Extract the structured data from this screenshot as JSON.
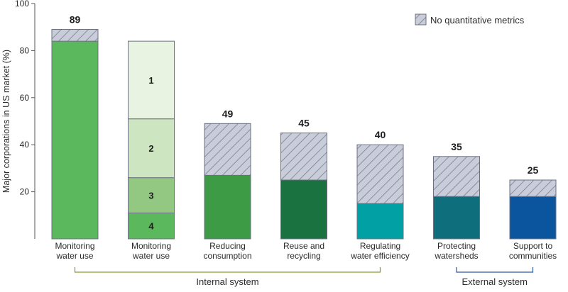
{
  "chart_data": {
    "type": "bar",
    "ylabel": "Major corporations in US market (%)",
    "ylim": [
      0,
      100
    ],
    "yticks": [
      20,
      40,
      60,
      80,
      100
    ],
    "legend": {
      "label": "No quantitative metrics",
      "placement": "top-right"
    },
    "categories": [
      "Monitoring water use",
      "Monitoring water use",
      "Reducing consumption",
      "Reuse and recycling",
      "Regulating water efficiency",
      "Protecting watersheds",
      "Support to communities"
    ],
    "category_lines": [
      [
        "Monitoring",
        "water use"
      ],
      [
        "Monitoring",
        "water use"
      ],
      [
        "Reducing",
        "consumption"
      ],
      [
        "Reuse and",
        "recycling"
      ],
      [
        "Regulating",
        "water efficiency"
      ],
      [
        "Protecting",
        "watersheds"
      ],
      [
        "Support to",
        "communities"
      ]
    ],
    "totals": [
      89,
      null,
      49,
      45,
      40,
      35,
      25
    ],
    "bars": [
      {
        "segments": [
          {
            "from": 0,
            "to": 84,
            "color": "#5cb85c"
          },
          {
            "from": 84,
            "to": 89,
            "color": "hatch"
          }
        ]
      },
      {
        "segments": [
          {
            "from": 0,
            "to": 11,
            "color": "#5cb85c",
            "label": "4"
          },
          {
            "from": 11,
            "to": 26,
            "color": "#93c882",
            "label": "3"
          },
          {
            "from": 26,
            "to": 51,
            "color": "#cde6c1",
            "label": "2"
          },
          {
            "from": 51,
            "to": 84,
            "color": "#e8f3e1",
            "label": "1"
          }
        ]
      },
      {
        "segments": [
          {
            "from": 0,
            "to": 27,
            "color": "#3d9a45"
          },
          {
            "from": 27,
            "to": 49,
            "color": "hatch"
          }
        ]
      },
      {
        "segments": [
          {
            "from": 0,
            "to": 25,
            "color": "#1a7240"
          },
          {
            "from": 25,
            "to": 45,
            "color": "hatch"
          }
        ]
      },
      {
        "segments": [
          {
            "from": 0,
            "to": 15,
            "color": "#00a0a4"
          },
          {
            "from": 15,
            "to": 40,
            "color": "hatch"
          }
        ]
      },
      {
        "segments": [
          {
            "from": 0,
            "to": 18,
            "color": "#0f6e7c"
          },
          {
            "from": 18,
            "to": 35,
            "color": "hatch"
          }
        ]
      },
      {
        "segments": [
          {
            "from": 0,
            "to": 18,
            "color": "#0b559e"
          },
          {
            "from": 18,
            "to": 25,
            "color": "hatch"
          }
        ]
      }
    ],
    "groups": [
      {
        "label": "Internal system",
        "from_index": 0,
        "to_index": 4,
        "color": "#8a9a2a"
      },
      {
        "label": "External system",
        "from_index": 5,
        "to_index": 6,
        "color": "#2c5b9e"
      }
    ],
    "hatch_colors": {
      "fill": "#c9cdda",
      "line": "#6e7388"
    },
    "grid": false
  }
}
